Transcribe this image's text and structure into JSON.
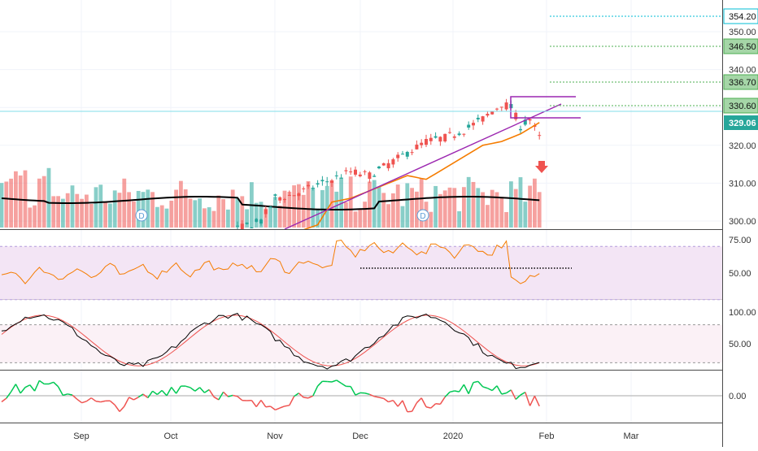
{
  "chart_data": {
    "type": "candlestick",
    "x_months": [
      "Sep",
      "Oct",
      "Nov",
      "Dec",
      "2020",
      "Feb",
      "Mar"
    ],
    "price_axis": {
      "ticks": [
        "300.00",
        "310.00",
        "320.00",
        "330.00",
        "340.00",
        "350.00"
      ],
      "range": [
        298,
        357
      ]
    },
    "price_labels": [
      {
        "text": "354.20",
        "value": 354.2,
        "color": "#00bcd4",
        "style": "dotted-line-label"
      },
      {
        "text": "346.50",
        "value": 346.5,
        "color": "#4caf50",
        "style": "dotted-line-label"
      },
      {
        "text": "336.70",
        "value": 336.7,
        "color": "#4caf50",
        "style": "dotted-line-label"
      },
      {
        "text": "330.60",
        "value": 330.6,
        "color": "#4caf50",
        "style": "dotted-line-label"
      },
      {
        "text": "329.06",
        "value": 329.06,
        "color": "#26a69a",
        "style": "last-price"
      }
    ],
    "markers": [
      {
        "label": "D",
        "month": "Sep/Oct"
      },
      {
        "label": "D",
        "month": "Dec"
      }
    ],
    "rsi": {
      "ticks": [
        "75.00",
        "50.00"
      ],
      "band": [
        30,
        70
      ]
    },
    "stochastic": {
      "ticks": [
        "100.00",
        "50.00"
      ],
      "band": [
        20,
        80
      ]
    },
    "oscillator": {
      "ticks": [
        "0.00"
      ]
    },
    "colors": {
      "up": "#26a69a",
      "down": "#ef5350",
      "ma_short": "#f57c00",
      "ma_long": "#000000",
      "trendline": "#9c27b0",
      "rsi_line": "#f57c00",
      "rsi_band": "#f3e5f5",
      "stoch_k": "#000000",
      "stoch_d": "#ef5350",
      "osc_up": "#00c853",
      "osc_down": "#ef5350"
    }
  }
}
